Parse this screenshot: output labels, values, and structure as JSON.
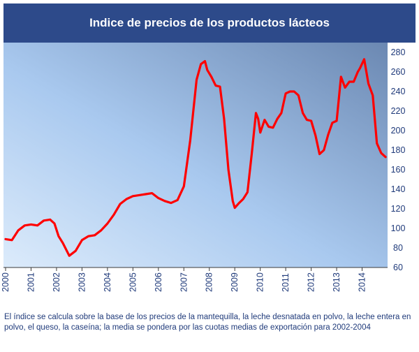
{
  "title": "Indice de precios de los productos lácteos",
  "footnote": "El índice se calcula sobre la base de los precios de la mantequilla, la leche desnatada en polvo, la leche entera en polvo, el queso, la caseína; la media se pondera por las cuotas medias de exportación para 2002-2004",
  "colors": {
    "header_bg": "#2d4a8a",
    "line": "#ff0000",
    "text": "#1f3a7a"
  },
  "chart_data": {
    "type": "line",
    "title": "Indice de precios de los productos lácteos",
    "xlabel": "",
    "ylabel": "",
    "x_tick_labels": [
      "2000",
      "2001",
      "2002",
      "2003",
      "2004",
      "2005",
      "2006",
      "2007",
      "2008",
      "2009",
      "2010",
      "2011",
      "2012",
      "2013",
      "2014"
    ],
    "xlim": [
      2000.0,
      2015.0
    ],
    "y_tick_labels": [
      "60",
      "80",
      "100",
      "120",
      "140",
      "160",
      "180",
      "200",
      "220",
      "240",
      "260",
      "280"
    ],
    "ylim": [
      60,
      290
    ],
    "y_axis_side": "right",
    "grid": false,
    "legend": "none",
    "series": [
      {
        "x": [
          2000.0,
          2000.25,
          2000.5,
          2000.75,
          2001.0,
          2001.25,
          2001.5,
          2001.75,
          2001.92,
          2002.08,
          2002.25,
          2002.5,
          2002.75,
          2003.0,
          2003.25,
          2003.5,
          2003.75,
          2004.0,
          2004.25,
          2004.5,
          2004.75,
          2005.0,
          2005.25,
          2005.5,
          2005.75,
          2006.0,
          2006.25,
          2006.5,
          2006.75,
          2007.0,
          2007.25,
          2007.5,
          2007.67,
          2007.83,
          2007.92,
          2008.08,
          2008.25,
          2008.42,
          2008.58,
          2008.75,
          2008.92,
          2009.0,
          2009.17,
          2009.33,
          2009.5,
          2009.67,
          2009.83,
          2009.92,
          2010.0,
          2010.17,
          2010.33,
          2010.5,
          2010.67,
          2010.83,
          2011.0,
          2011.17,
          2011.33,
          2011.5,
          2011.67,
          2011.83,
          2012.0,
          2012.17,
          2012.33,
          2012.5,
          2012.67,
          2012.83,
          2013.0,
          2013.17,
          2013.33,
          2013.5,
          2013.67,
          2013.83,
          2013.92,
          2014.08,
          2014.25,
          2014.42,
          2014.58,
          2014.75,
          2014.92
        ],
        "y": [
          89,
          88,
          98,
          103,
          104,
          103,
          108,
          109,
          105,
          92,
          85,
          72,
          77,
          88,
          92,
          93,
          98,
          105,
          114,
          125,
          130,
          133,
          134,
          135,
          136,
          131,
          128,
          126,
          129,
          143,
          190,
          252,
          268,
          271,
          262,
          255,
          246,
          245,
          212,
          160,
          128,
          121,
          126,
          130,
          137,
          177,
          218,
          212,
          198,
          211,
          204,
          203,
          212,
          218,
          238,
          240,
          240,
          236,
          218,
          211,
          210,
          195,
          176,
          180,
          196,
          208,
          210,
          255,
          244,
          250,
          250,
          260,
          264,
          273,
          248,
          236,
          187,
          177,
          173
        ]
      }
    ]
  }
}
